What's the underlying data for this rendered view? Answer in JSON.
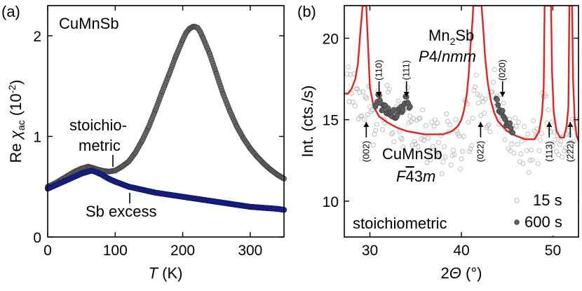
{
  "colors": {
    "stoichiometric": "#6e6e6e",
    "sb_excess": "#1f2a9c",
    "fit_line": "#e4211c",
    "data_15s": "#b8b8b8",
    "data_600s": "#5f5f5f"
  },
  "chart_data": [
    {
      "panel": "(a)",
      "type": "scatter",
      "title": "CuMnSb",
      "xlabel": {
        "italic": "T",
        "rest": " (K)"
      },
      "ylabel": {
        "pre": "Re ",
        "chi": "χ",
        "sub": "ac",
        "post": " (10",
        "sup": "-2",
        "end": ")"
      },
      "xlim": [
        0,
        350
      ],
      "ylim": [
        0,
        2.3
      ],
      "xticks": [
        0,
        100,
        200,
        300
      ],
      "yticks": [
        0,
        1,
        2
      ],
      "annotations": [
        "stoichio-",
        "metric",
        "Sb excess"
      ],
      "series": [
        {
          "name": "stoichiometric",
          "x": [
            0,
            10,
            20,
            30,
            40,
            50,
            55,
            60,
            65,
            70,
            80,
            90,
            100,
            110,
            120,
            130,
            140,
            150,
            160,
            170,
            180,
            190,
            200,
            205,
            210,
            215,
            218,
            222,
            226,
            230,
            240,
            250,
            260,
            270,
            280,
            290,
            300,
            310,
            320,
            330,
            340,
            350
          ],
          "y": [
            0.5,
            0.53,
            0.57,
            0.61,
            0.65,
            0.68,
            0.69,
            0.7,
            0.69,
            0.68,
            0.66,
            0.65,
            0.66,
            0.7,
            0.75,
            0.84,
            0.96,
            1.1,
            1.27,
            1.45,
            1.62,
            1.8,
            1.96,
            2.03,
            2.07,
            2.09,
            2.09,
            2.08,
            2.04,
            1.98,
            1.82,
            1.62,
            1.42,
            1.25,
            1.1,
            0.98,
            0.88,
            0.8,
            0.73,
            0.67,
            0.62,
            0.58
          ]
        },
        {
          "name": "Sb excess",
          "x": [
            0,
            10,
            20,
            30,
            40,
            50,
            60,
            65,
            70,
            80,
            90,
            100,
            120,
            140,
            160,
            180,
            200,
            220,
            240,
            260,
            280,
            300,
            320,
            340,
            350
          ],
          "y": [
            0.48,
            0.51,
            0.54,
            0.57,
            0.6,
            0.63,
            0.65,
            0.66,
            0.65,
            0.62,
            0.58,
            0.55,
            0.5,
            0.47,
            0.44,
            0.42,
            0.4,
            0.38,
            0.36,
            0.34,
            0.32,
            0.3,
            0.29,
            0.28,
            0.27
          ]
        }
      ]
    },
    {
      "panel": "(b)",
      "type": "scatter",
      "title": "",
      "xlabel": {
        "pre": "2",
        "italic": "Θ",
        "rest": " (°)"
      },
      "ylabel": {
        "text": "Int. (cts./s)"
      },
      "xlim": [
        27.2,
        52.8
      ],
      "ylim": [
        7.8,
        22
      ],
      "xticks": [
        30,
        40,
        50
      ],
      "yticks": [
        10,
        15,
        20
      ],
      "annotations": {
        "mn2sb": {
          "pre": "Mn",
          "sub": "2",
          "post": "Sb"
        },
        "mn2sb_group": {
          "italic": "P",
          "rest": "4/",
          "italic2": "nmm"
        },
        "cumnsb": "CuMnSb",
        "cumnsb_group": {
          "italic": "F",
          "bar": "4",
          "rest": "3",
          "italic2": "m"
        },
        "stoichiometric": "stoichiometric",
        "legend": [
          "15 s",
          "600 s"
        ]
      },
      "peaks_mn2sb": [
        {
          "label": "(110)",
          "x": 31.0
        },
        {
          "label": "(111)",
          "x": 34.0
        },
        {
          "label": "(020)",
          "x": 44.5
        }
      ],
      "peaks_cumnsb": [
        {
          "label": "(002)",
          "x": 29.6
        },
        {
          "label": "(022)",
          "x": 42.1
        },
        {
          "label": "(113)",
          "x": 49.6
        },
        {
          "label": "(222)",
          "x": 51.9
        }
      ],
      "series": [
        {
          "name": "15 s",
          "x": [
            27.5,
            28.0,
            28.5,
            29.0,
            29.5,
            30.0,
            30.5,
            31.0,
            31.5,
            32.0,
            32.5,
            33.0,
            33.5,
            34.0,
            34.5,
            35.0,
            35.5,
            36.0,
            36.5,
            37.0,
            37.5,
            38.0,
            38.5,
            39.0,
            39.5,
            40.0,
            40.5,
            41.0,
            41.5,
            42.0,
            42.5,
            43.0,
            43.5,
            44.0,
            44.5,
            45.0,
            45.5,
            46.0,
            46.5,
            47.0,
            47.5,
            48.0,
            48.5,
            49.0,
            49.5,
            50.0,
            50.5,
            51.0,
            51.5,
            52.0,
            52.5
          ],
          "y": [
            17.8,
            16.6,
            16.9,
            15.2,
            16.4,
            15.8,
            14.1,
            16.3,
            15.0,
            16.7,
            14.2,
            15.6,
            13.8,
            16.2,
            14.9,
            13.5,
            15.1,
            14.0,
            12.9,
            14.6,
            13.6,
            12.4,
            14.9,
            12.8,
            14.3,
            12.6,
            16.1,
            13.2,
            17.0,
            16.5,
            15.4,
            14.7,
            17.3,
            16.0,
            15.2,
            14.4,
            13.5,
            14.6,
            12.9,
            13.8,
            12.5,
            14.3,
            13.1,
            16.4,
            15.6,
            13.4,
            14.0,
            12.7,
            14.1,
            13.6,
            15.0
          ]
        },
        {
          "name": "600 s",
          "x": [
            30.6,
            30.8,
            31.0,
            31.2,
            31.4,
            31.6,
            31.8,
            32.0,
            32.2,
            32.4,
            32.6,
            32.8,
            33.0,
            33.2,
            33.4,
            33.6,
            33.8,
            34.0,
            34.2,
            34.4,
            43.8,
            44.0,
            44.2,
            44.4,
            44.6,
            44.8,
            45.0,
            45.2,
            45.4,
            45.6
          ],
          "y": [
            15.8,
            16.1,
            16.5,
            16.0,
            15.6,
            15.9,
            15.4,
            15.7,
            15.3,
            15.2,
            15.6,
            15.1,
            15.3,
            15.5,
            15.8,
            15.6,
            16.0,
            16.4,
            16.0,
            15.8,
            16.3,
            15.9,
            15.6,
            15.4,
            15.2,
            15.0,
            14.8,
            14.6,
            14.5,
            14.2
          ]
        },
        {
          "name": "fit",
          "x": [
            27.2,
            27.6,
            28.0,
            28.4,
            28.7,
            28.9,
            29.2,
            29.6,
            30.0,
            30.4,
            31.0,
            32.0,
            33.0,
            34.0,
            35.0,
            36.0,
            37.0,
            38.0,
            39.0,
            39.6,
            40.0,
            40.3,
            40.6,
            40.8,
            41.0,
            41.2,
            41.3,
            42.2,
            42.4,
            42.6,
            42.9,
            43.2,
            43.6,
            44.0,
            44.5,
            45.0,
            46.0,
            47.0,
            48.0,
            48.5,
            48.8,
            49.0,
            49.1,
            49.8,
            49.9,
            50.1,
            50.4,
            50.8,
            51.2,
            51.5,
            51.7,
            51.8,
            52.1,
            52.2,
            52.4,
            52.6,
            52.8
          ],
          "y": [
            16.6,
            16.6,
            16.9,
            17.5,
            18.5,
            20.0,
            22.0,
            22.0,
            17.0,
            15.8,
            15.2,
            14.8,
            14.5,
            14.3,
            14.2,
            14.1,
            14.1,
            14.1,
            14.3,
            14.6,
            15.0,
            15.6,
            16.6,
            17.8,
            19.5,
            21.0,
            22.0,
            22.0,
            20.5,
            18.8,
            17.2,
            16.2,
            15.4,
            14.9,
            14.6,
            14.3,
            14.0,
            13.8,
            13.8,
            14.3,
            15.3,
            17.0,
            22.0,
            22.0,
            18.0,
            15.4,
            14.3,
            13.9,
            13.9,
            14.6,
            15.8,
            22.0,
            22.0,
            17.5,
            14.8,
            14.0,
            13.7
          ]
        }
      ]
    }
  ]
}
